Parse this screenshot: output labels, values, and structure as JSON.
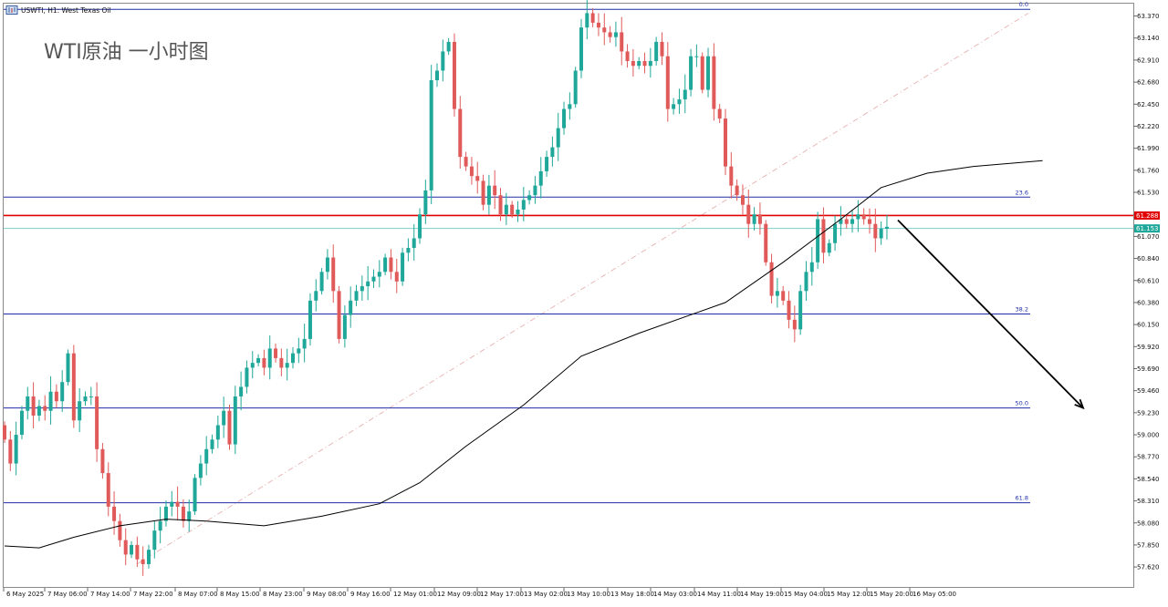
{
  "header": {
    "symbol_label": "USWTI, H1: West Texas Oil",
    "chart_title": "WTI原油 一小时图"
  },
  "colors": {
    "bull": "#1fa89a",
    "bear": "#e05a5a",
    "level_red": "#e00000",
    "level_teal": "#7fd0cc",
    "fib": "#1f2ea8",
    "ma": "#000000",
    "price_tag_red": "#e00000",
    "price_tag_teal": "#1fa89a",
    "arrow": "#000000",
    "diagonal": "#e8b8b8"
  },
  "chart_data": {
    "type": "candlestick",
    "title": "WTI原油 一小时图",
    "instrument": "USWTI, H1: West Texas Oil",
    "ylim": [
      57.45,
      63.48
    ],
    "y_ticks": [
      "63.370",
      "63.140",
      "62.910",
      "62.680",
      "62.450",
      "62.220",
      "61.990",
      "61.760",
      "61.530",
      "61.300",
      "61.070",
      "60.840",
      "60.610",
      "60.380",
      "60.150",
      "59.920",
      "59.690",
      "59.460",
      "59.230",
      "59.000",
      "58.770",
      "58.540",
      "58.310",
      "58.080",
      "57.850",
      "57.620"
    ],
    "x_ticks": [
      "6 May 2025",
      "7 May 06:00",
      "7 May 14:00",
      "7 May 22:00",
      "8 May 07:00",
      "8 May 15:00",
      "8 May 23:00",
      "9 May 08:00",
      "9 May 16:00",
      "12 May 01:00",
      "12 May 09:00",
      "12 May 17:00",
      "13 May 02:00",
      "13 May 10:00",
      "13 May 18:00",
      "14 May 03:00",
      "14 May 11:00",
      "14 May 19:00",
      "15 May 04:00",
      "15 May 12:00",
      "15 May 20:00",
      "16 May 05:00"
    ],
    "fib_levels": [
      {
        "label": "0.0",
        "price": 63.44
      },
      {
        "label": "23.6",
        "price": 61.48
      },
      {
        "label": "38.2",
        "price": 60.26
      },
      {
        "label": "50.0",
        "price": 59.28
      },
      {
        "label": "61.8",
        "price": 58.29
      }
    ],
    "horizontal_lines": [
      {
        "label": "61.288",
        "price": 61.288,
        "style": "red"
      },
      {
        "label": "61.153",
        "price": 61.153,
        "style": "teal"
      }
    ],
    "price_tags": [
      {
        "text": "61.288",
        "price": 61.288,
        "style": "red"
      },
      {
        "text": "61.153",
        "price": 61.153,
        "style": "teal"
      }
    ],
    "closes": [
      58.95,
      58.7,
      59.0,
      59.25,
      59.4,
      59.2,
      59.3,
      59.25,
      59.45,
      59.35,
      59.55,
      59.85,
      59.15,
      59.35,
      59.4,
      59.4,
      58.85,
      58.6,
      58.25,
      58.1,
      57.9,
      57.75,
      57.85,
      57.7,
      57.65,
      57.8,
      58.0,
      58.1,
      58.25,
      58.3,
      58.25,
      58.1,
      58.2,
      58.55,
      58.7,
      58.85,
      58.95,
      59.1,
      59.25,
      58.9,
      59.4,
      59.5,
      59.7,
      59.75,
      59.8,
      59.7,
      59.9,
      59.8,
      59.7,
      59.75,
      59.85,
      59.9,
      60.0,
      60.4,
      60.5,
      60.7,
      60.85,
      60.5,
      60.0,
      60.25,
      60.4,
      60.5,
      60.55,
      60.6,
      60.65,
      60.7,
      60.85,
      60.7,
      60.6,
      60.9,
      60.95,
      61.05,
      61.3,
      61.55,
      62.7,
      62.8,
      63.0,
      63.1,
      62.4,
      61.9,
      61.8,
      61.7,
      61.65,
      61.4,
      61.6,
      61.5,
      61.3,
      61.4,
      61.3,
      61.35,
      61.45,
      61.5,
      61.6,
      61.75,
      61.9,
      62.0,
      62.2,
      62.4,
      62.45,
      62.8,
      63.25,
      63.4,
      63.3,
      63.25,
      63.2,
      63.15,
      63.2,
      63.0,
      62.9,
      62.85,
      62.9,
      62.85,
      62.9,
      63.1,
      62.95,
      62.4,
      62.45,
      62.5,
      62.6,
      62.95,
      62.95,
      62.6,
      62.95,
      62.4,
      62.3,
      61.8,
      61.6,
      61.5,
      61.4,
      61.2,
      61.3,
      61.2,
      60.8,
      60.45,
      60.5,
      60.4,
      60.2,
      60.1,
      60.5,
      60.7,
      60.8,
      61.25,
      60.9,
      61.0,
      61.2,
      61.25,
      61.2,
      61.25,
      61.3,
      61.25,
      61.2,
      61.05,
      61.15,
      61.17
    ],
    "ma_points": [
      [
        0,
        57.84
      ],
      [
        6,
        57.82
      ],
      [
        12,
        57.93
      ],
      [
        20,
        58.05
      ],
      [
        28,
        58.12
      ],
      [
        35,
        58.1
      ],
      [
        45,
        58.05
      ],
      [
        55,
        58.15
      ],
      [
        65,
        58.28
      ],
      [
        72,
        58.5
      ],
      [
        80,
        58.88
      ],
      [
        90,
        59.31
      ],
      [
        100,
        59.82
      ],
      [
        110,
        60.06
      ],
      [
        125,
        60.38
      ],
      [
        135,
        60.8
      ],
      [
        145,
        61.25
      ],
      [
        152,
        61.58
      ],
      [
        160,
        61.73
      ],
      [
        168,
        61.8
      ],
      [
        180,
        61.86
      ]
    ]
  }
}
